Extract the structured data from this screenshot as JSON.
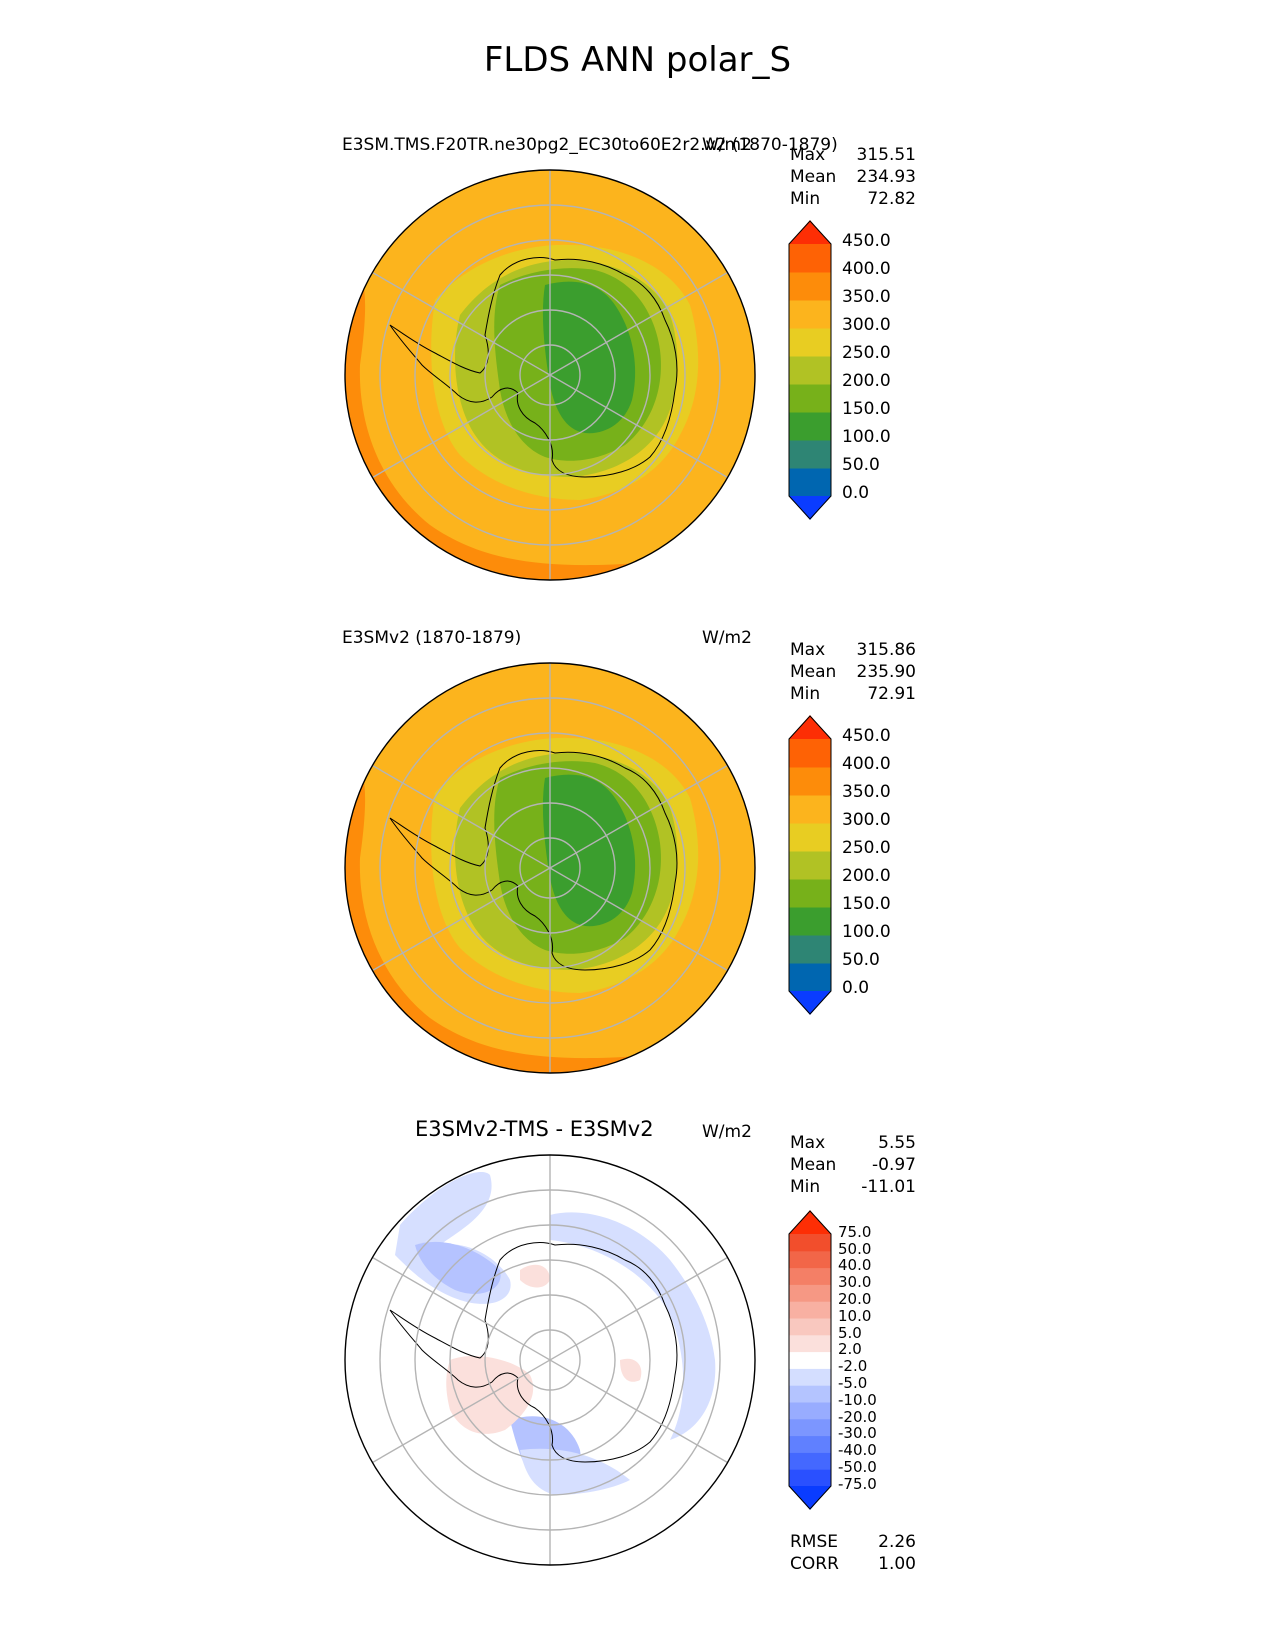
{
  "main_title": "FLDS ANN polar_S",
  "icons": {
    "coastline": "antarctica-coastline-icon"
  },
  "chart_data": [
    {
      "type": "heatmap",
      "projection": "south-polar-stereographic",
      "title": "E3SM.TMS.F20TR.ne30pg2_EC30to60E2r2.v2 (1870-1879)",
      "units": "W/m2",
      "stats": [
        {
          "label": "Max",
          "value": "315.51"
        },
        {
          "label": "Mean",
          "value": "234.93"
        },
        {
          "label": "Min",
          "value": "72.82"
        }
      ],
      "colorbar": {
        "levels": [
          "0.0",
          "50.0",
          "100.0",
          "150.0",
          "200.0",
          "250.0",
          "300.0",
          "350.0",
          "400.0",
          "450.0"
        ],
        "colors": [
          "#0a3cff",
          "#0066b0",
          "#2e8574",
          "#3b9e2e",
          "#77b11a",
          "#b1c224",
          "#e8cd22",
          "#fcb41d",
          "#fd8c0a",
          "#fe6205",
          "#fd2e05"
        ]
      },
      "field": {
        "ocean_level": 300.0,
        "warm_rim_level": 350.0,
        "coast_level": 250.0,
        "ice_margin_level": 200.0,
        "interior_level": 150.0,
        "plateau_level": 100.0
      }
    },
    {
      "type": "heatmap",
      "projection": "south-polar-stereographic",
      "title": "E3SMv2 (1870-1879)",
      "units": "W/m2",
      "stats": [
        {
          "label": "Max",
          "value": "315.86"
        },
        {
          "label": "Mean",
          "value": "235.90"
        },
        {
          "label": "Min",
          "value": "72.91"
        }
      ],
      "colorbar": {
        "levels": [
          "0.0",
          "50.0",
          "100.0",
          "150.0",
          "200.0",
          "250.0",
          "300.0",
          "350.0",
          "400.0",
          "450.0"
        ],
        "colors": [
          "#0a3cff",
          "#0066b0",
          "#2e8574",
          "#3b9e2e",
          "#77b11a",
          "#b1c224",
          "#e8cd22",
          "#fcb41d",
          "#fd8c0a",
          "#fe6205",
          "#fd2e05"
        ]
      },
      "field": {
        "ocean_level": 300.0,
        "warm_rim_level": 350.0,
        "coast_level": 250.0,
        "ice_margin_level": 200.0,
        "interior_level": 150.0,
        "plateau_level": 100.0
      }
    },
    {
      "type": "heatmap",
      "projection": "south-polar-stereographic",
      "title": "E3SMv2-TMS - E3SMv2",
      "units": "W/m2",
      "stats": [
        {
          "label": "Max",
          "value": "5.55"
        },
        {
          "label": "Mean",
          "value": "-0.97"
        },
        {
          "label": "Min",
          "value": "-11.01"
        }
      ],
      "colorbar": {
        "levels": [
          "-75.0",
          "-50.0",
          "-40.0",
          "-30.0",
          "-20.0",
          "-10.0",
          "-5.0",
          "-2.0",
          "2.0",
          "5.0",
          "10.0",
          "20.0",
          "30.0",
          "40.0",
          "50.0",
          "75.0"
        ],
        "colors": [
          "#0a3cff",
          "#2a50ff",
          "#4468ff",
          "#6080ff",
          "#7c96ff",
          "#98acff",
          "#b4c4ff",
          "#d4deff",
          "#ffffff",
          "#fbe0dc",
          "#f9c8bf",
          "#f8b0a2",
          "#f69884",
          "#f47f66",
          "#f26648",
          "#f24e2c",
          "#fd2e05"
        ]
      },
      "metrics": [
        {
          "label": "RMSE",
          "value": "2.26"
        },
        {
          "label": "CORR",
          "value": "1.00"
        }
      ]
    }
  ]
}
